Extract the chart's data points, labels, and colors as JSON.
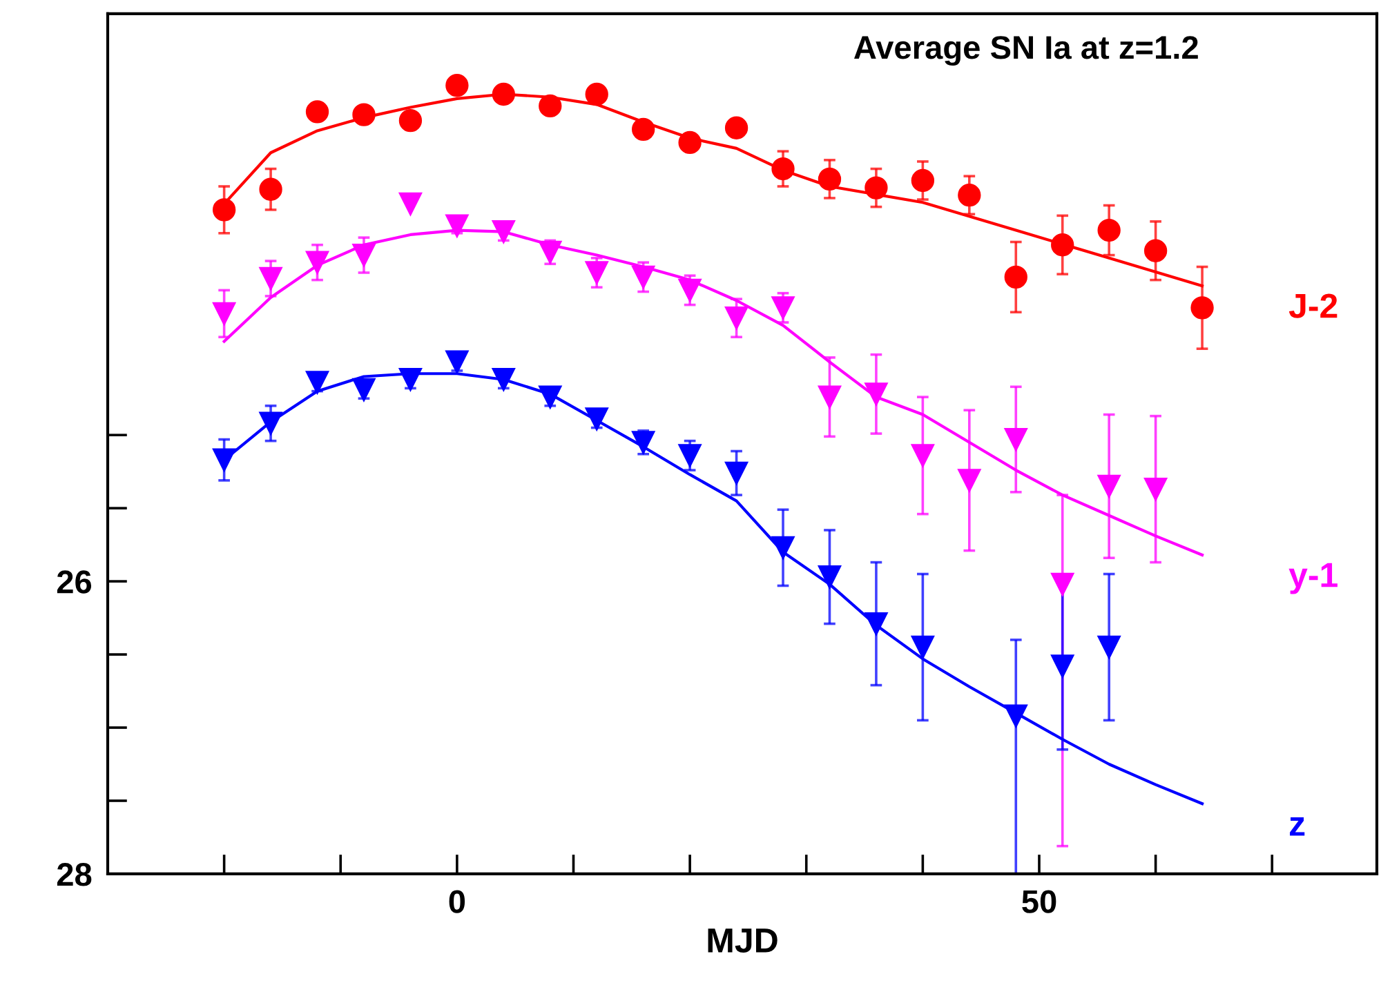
{
  "chart_data": {
    "type": "scatter",
    "title": "Average SN Ia at z=1.2",
    "xlabel": "MJD",
    "xlim": [
      -30,
      79
    ],
    "ylim": [
      28,
      22.12
    ],
    "xticks": [
      {
        "value": -20,
        "label": null
      },
      {
        "value": -10,
        "label": null
      },
      0,
      {
        "value": 10,
        "label": null
      },
      {
        "value": 20,
        "label": null
      },
      {
        "value": 30,
        "label": null
      },
      {
        "value": 40,
        "label": null
      },
      50,
      {
        "value": 60,
        "label": null
      },
      {
        "value": 70,
        "label": null
      }
    ],
    "yticks": [
      {
        "value": 25,
        "label": null
      },
      {
        "value": 25.5,
        "label": null
      },
      26,
      {
        "value": 26.5,
        "label": null
      },
      {
        "value": 27,
        "label": null
      },
      {
        "value": 27.5,
        "label": null
      },
      28
    ],
    "grid": false,
    "series": [
      {
        "color": "#ff0000",
        "marker": "circle",
        "x": [
          -20,
          -16,
          -12,
          -8,
          -4,
          0,
          4,
          8,
          12,
          16,
          20,
          24,
          28,
          32,
          36,
          40,
          44,
          48,
          52,
          56,
          60,
          64
        ],
        "values": [
          23.46,
          23.32,
          22.79,
          22.81,
          22.85,
          22.61,
          22.67,
          22.75,
          22.67,
          22.91,
          23.0,
          22.9,
          23.18,
          23.25,
          23.31,
          23.26,
          23.36,
          23.92,
          23.7,
          23.6,
          23.74,
          24.13
        ],
        "errors": [
          0.16,
          0.14,
          0.05,
          0.05,
          0.05,
          0.05,
          0.05,
          0.05,
          0.05,
          0.05,
          0.06,
          0.06,
          0.12,
          0.13,
          0.13,
          0.13,
          0.13,
          0.24,
          0.2,
          0.17,
          0.2,
          0.28
        ]
      },
      {
        "type": "line",
        "name": "J-2",
        "color": "#ff0000",
        "x": [
          -20,
          -16,
          -12,
          -8,
          -4,
          0,
          4,
          8,
          12,
          16,
          20,
          24,
          28,
          32,
          40,
          48,
          56,
          64
        ],
        "values": [
          23.42,
          23.07,
          22.92,
          22.83,
          22.76,
          22.7,
          22.67,
          22.69,
          22.74,
          22.86,
          22.97,
          23.04,
          23.19,
          23.3,
          23.41,
          23.6,
          23.79,
          23.98
        ]
      },
      {
        "color": "#ff00ff",
        "marker": "triangle",
        "x": [
          -20,
          -16,
          -12,
          -8,
          -4,
          0,
          4,
          8,
          12,
          16,
          20,
          24,
          28,
          32,
          36,
          40,
          44,
          48,
          52,
          56,
          60
        ],
        "values": [
          24.17,
          23.93,
          23.82,
          23.77,
          23.42,
          23.57,
          23.61,
          23.75,
          23.89,
          23.92,
          24.01,
          24.2,
          24.13,
          24.74,
          24.72,
          25.14,
          25.31,
          25.03,
          26.02,
          25.35,
          25.37
        ],
        "errors": [
          0.16,
          0.12,
          0.12,
          0.12,
          null,
          0.05,
          0.06,
          0.08,
          0.1,
          0.1,
          0.1,
          0.13,
          0.1,
          0.27,
          0.27,
          0.4,
          0.48,
          0.36,
          [
            25.41,
            27.81
          ],
          0.49,
          0.5
        ]
      },
      {
        "type": "line",
        "name": "y-1",
        "color": "#ff00ff",
        "x": [
          -20,
          -16,
          -12,
          -8,
          -4,
          0,
          4,
          8,
          12,
          16,
          20,
          24,
          28,
          32,
          36,
          40,
          44,
          48,
          52,
          56,
          60,
          64
        ],
        "values": [
          24.36,
          24.06,
          23.84,
          23.7,
          23.63,
          23.6,
          23.61,
          23.7,
          23.77,
          23.85,
          23.94,
          24.08,
          24.25,
          24.5,
          24.74,
          24.86,
          25.05,
          25.24,
          25.41,
          25.55,
          25.69,
          25.82
        ]
      },
      {
        "color": "#0000ff",
        "marker": "triangle",
        "x": [
          -20,
          -16,
          -12,
          -8,
          -4,
          0,
          4,
          8,
          12,
          16,
          20,
          24,
          28,
          32,
          36,
          40,
          48,
          52,
          56
        ],
        "values": [
          25.17,
          24.92,
          24.64,
          24.69,
          24.62,
          24.5,
          24.62,
          24.74,
          24.89,
          25.05,
          25.14,
          25.26,
          25.77,
          25.97,
          26.29,
          26.45,
          26.92,
          26.58,
          26.45
        ],
        "errors": [
          0.14,
          0.12,
          0.06,
          0.06,
          0.06,
          0.06,
          0.06,
          0.06,
          0.06,
          0.08,
          0.1,
          0.15,
          0.26,
          0.32,
          0.42,
          0.5,
          [
            26.4,
            28
          ],
          0.57,
          0.5
        ]
      },
      {
        "type": "line",
        "name": "z",
        "color": "#0000ff",
        "x": [
          -20,
          -16,
          -12,
          -8,
          -4,
          0,
          4,
          8,
          12,
          16,
          20,
          24,
          28,
          32,
          36,
          40,
          44,
          48,
          52,
          56,
          60,
          64
        ],
        "values": [
          25.17,
          24.91,
          24.7,
          24.6,
          24.58,
          24.58,
          24.62,
          24.72,
          24.9,
          25.08,
          25.27,
          25.45,
          25.8,
          26.02,
          26.3,
          26.53,
          26.72,
          26.9,
          27.08,
          27.25,
          27.39,
          27.52
        ]
      }
    ]
  }
}
